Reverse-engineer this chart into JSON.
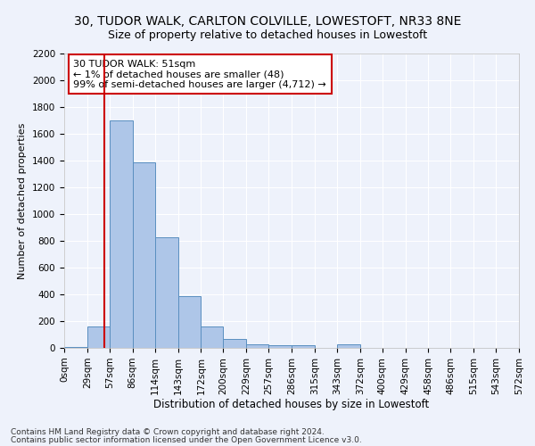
{
  "title1": "30, TUDOR WALK, CARLTON COLVILLE, LOWESTOFT, NR33 8NE",
  "title2": "Size of property relative to detached houses in Lowestoft",
  "xlabel": "Distribution of detached houses by size in Lowestoft",
  "ylabel": "Number of detached properties",
  "footnote1": "Contains HM Land Registry data © Crown copyright and database right 2024.",
  "footnote2": "Contains public sector information licensed under the Open Government Licence v3.0.",
  "annotation_line1": "30 TUDOR WALK: 51sqm",
  "annotation_line2": "← 1% of detached houses are smaller (48)",
  "annotation_line3": "99% of semi-detached houses are larger (4,712) →",
  "property_sqm": 51,
  "bar_edges": [
    0,
    29,
    57,
    86,
    114,
    143,
    172,
    200,
    229,
    257,
    286,
    315,
    343,
    372,
    400,
    429,
    458,
    486,
    515,
    543,
    572
  ],
  "bar_values": [
    10,
    160,
    1700,
    1390,
    830,
    385,
    160,
    65,
    25,
    18,
    18,
    0,
    25,
    0,
    0,
    0,
    0,
    0,
    0,
    0
  ],
  "bar_color": "#aec6e8",
  "bar_edge_color": "#5a8fc0",
  "vline_color": "#cc0000",
  "vline_x": 51,
  "annotation_box_color": "#cc0000",
  "ylim": [
    0,
    2200
  ],
  "yticks": [
    0,
    200,
    400,
    600,
    800,
    1000,
    1200,
    1400,
    1600,
    1800,
    2000,
    2200
  ],
  "bg_color": "#eef2fb",
  "grid_color": "#ffffff",
  "title1_fontsize": 10,
  "title2_fontsize": 9,
  "xlabel_fontsize": 8.5,
  "ylabel_fontsize": 8,
  "tick_fontsize": 7.5,
  "annot_fontsize": 8,
  "footnote_fontsize": 6.5
}
